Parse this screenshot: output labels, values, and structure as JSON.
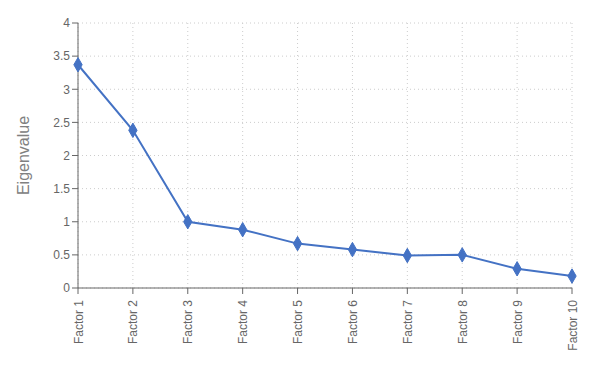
{
  "chart_data": {
    "type": "line",
    "categories": [
      "Factor 1",
      "Factor 2",
      "Factor 3",
      "Factor 4",
      "Factor 5",
      "Factor 6",
      "Factor 7",
      "Factor 8",
      "Factor 9",
      "Factor 10"
    ],
    "values": [
      3.37,
      2.38,
      1.0,
      0.88,
      0.67,
      0.58,
      0.49,
      0.5,
      0.29,
      0.18
    ],
    "color": "#4472c4",
    "marker": "diamond",
    "ylabel": "Eigenvalue",
    "ylim": [
      0,
      4
    ],
    "yticks": [
      0,
      0.5,
      1,
      1.5,
      2,
      2.5,
      3,
      3.5,
      4
    ],
    "grid": true
  }
}
